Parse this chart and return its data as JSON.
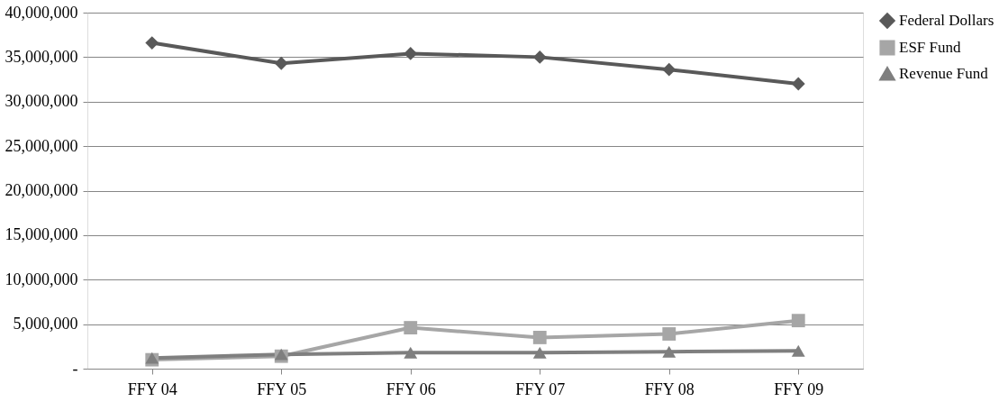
{
  "chart_data": {
    "type": "line",
    "categories": [
      "FFY 04",
      "FFY 05",
      "FFY 06",
      "FFY 07",
      "FFY 08",
      "FFY 09"
    ],
    "series": [
      {
        "name": "Federal Dollars",
        "color": "#595959",
        "marker": "diamond",
        "values": [
          36600000,
          34300000,
          35400000,
          35000000,
          33600000,
          32000000
        ]
      },
      {
        "name": "ESF Fund",
        "color": "#a6a6a6",
        "marker": "square",
        "values": [
          1000000,
          1400000,
          4600000,
          3500000,
          3900000,
          5400000
        ]
      },
      {
        "name": "Revenue Fund",
        "color": "#7f7f7f",
        "marker": "triangle",
        "values": [
          1200000,
          1600000,
          1800000,
          1800000,
          1900000,
          2000000
        ]
      }
    ],
    "ylim": [
      0,
      40000000
    ],
    "yticks": [
      {
        "value": 0,
        "label": "-"
      },
      {
        "value": 5000000,
        "label": "5,000,000"
      },
      {
        "value": 10000000,
        "label": "10,000,000"
      },
      {
        "value": 15000000,
        "label": "15,000,000"
      },
      {
        "value": 20000000,
        "label": "20,000,000"
      },
      {
        "value": 25000000,
        "label": "25,000,000"
      },
      {
        "value": 30000000,
        "label": "30,000,000"
      },
      {
        "value": 35000000,
        "label": "35,000,000"
      },
      {
        "value": 40000000,
        "label": "40,000,000"
      }
    ],
    "grid": "y",
    "legend": "right",
    "line_style": "solid"
  }
}
